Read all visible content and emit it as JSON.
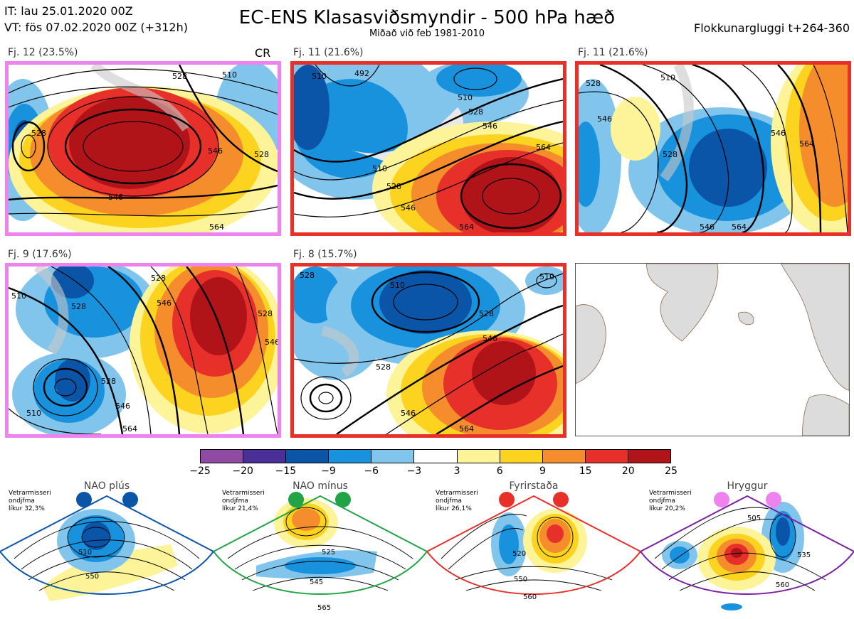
{
  "header": {
    "initial_time": "IT: lau 25.01.2020 00Z",
    "valid_time": "VT: fös 07.02.2020 00Z  (+312h)",
    "title": "EC-ENS Klasasviðsmyndir - 500 hPa hæð",
    "subtitle": "Miðað við feb 1981-2010",
    "window": "Flokkunargluggi t+264-360"
  },
  "panels": [
    {
      "label": "Fj. 12 (23.5%)",
      "frame_color": "#ee82ee",
      "tag": "CR",
      "contour_labels": [
        "528",
        "510",
        "528",
        "546",
        "528",
        "546",
        "564"
      ]
    },
    {
      "label": "Fj. 11 (21.6%)",
      "frame_color": "#e8302a",
      "contour_labels": [
        "510",
        "492",
        "510",
        "528",
        "546",
        "564",
        "510",
        "528",
        "546",
        "564"
      ]
    },
    {
      "label": "Fj. 11 (21.6%)",
      "frame_color": "#e8302a",
      "contour_labels": [
        "510",
        "528",
        "528",
        "546",
        "564",
        "546",
        "564",
        "546"
      ]
    },
    {
      "label": "Fj. 9 (17.6%)",
      "frame_color": "#ee82ee",
      "contour_labels": [
        "510",
        "528",
        "528",
        "546",
        "528",
        "546",
        "510",
        "528",
        "546",
        "564"
      ]
    },
    {
      "label": "Fj. 8 (15.7%)",
      "frame_color": "#e8302a",
      "contour_labels": [
        "528",
        "510",
        "528",
        "546",
        "528",
        "546",
        "564",
        "510"
      ]
    }
  ],
  "colorbar": {
    "colors": [
      "#8f4aa2",
      "#4a2f99",
      "#0b55a9",
      "#1992dd",
      "#82c5ec",
      "#ffffff",
      "#fdf49a",
      "#fcd420",
      "#f58d2d",
      "#e8302a",
      "#b01318"
    ],
    "ticks": [
      "−25",
      "−20",
      "−15",
      "−9",
      "−6",
      "−3",
      "3",
      "6",
      "9",
      "15",
      "20",
      "25"
    ]
  },
  "regimes": [
    {
      "name": "NAO plús",
      "season": "Vetrarmisseri",
      "measure": "ondjfma",
      "prob": "líkur 32,3%",
      "color": "#0b55a9",
      "contours": [
        "510",
        "550"
      ]
    },
    {
      "name": "NAO mínus",
      "season": "Vetrarmisseri",
      "measure": "ondjfma",
      "prob": "líkur 21,4%",
      "color": "#22a446",
      "contours": [
        "525",
        "545",
        "565"
      ]
    },
    {
      "name": "Fyrirstaða",
      "season": "Vetrarmisseri",
      "measure": "ondjfma",
      "prob": "líkur 26,1%",
      "color": "#e8302a",
      "contours": [
        "520",
        "550",
        "560"
      ]
    },
    {
      "name": "Hryggur",
      "season": "Vetrarmisseri",
      "measure": "ondjfma",
      "prob": "líkur 20,2%",
      "color": "#ee82ee",
      "contours": [
        "505",
        "535",
        "560"
      ]
    }
  ]
}
